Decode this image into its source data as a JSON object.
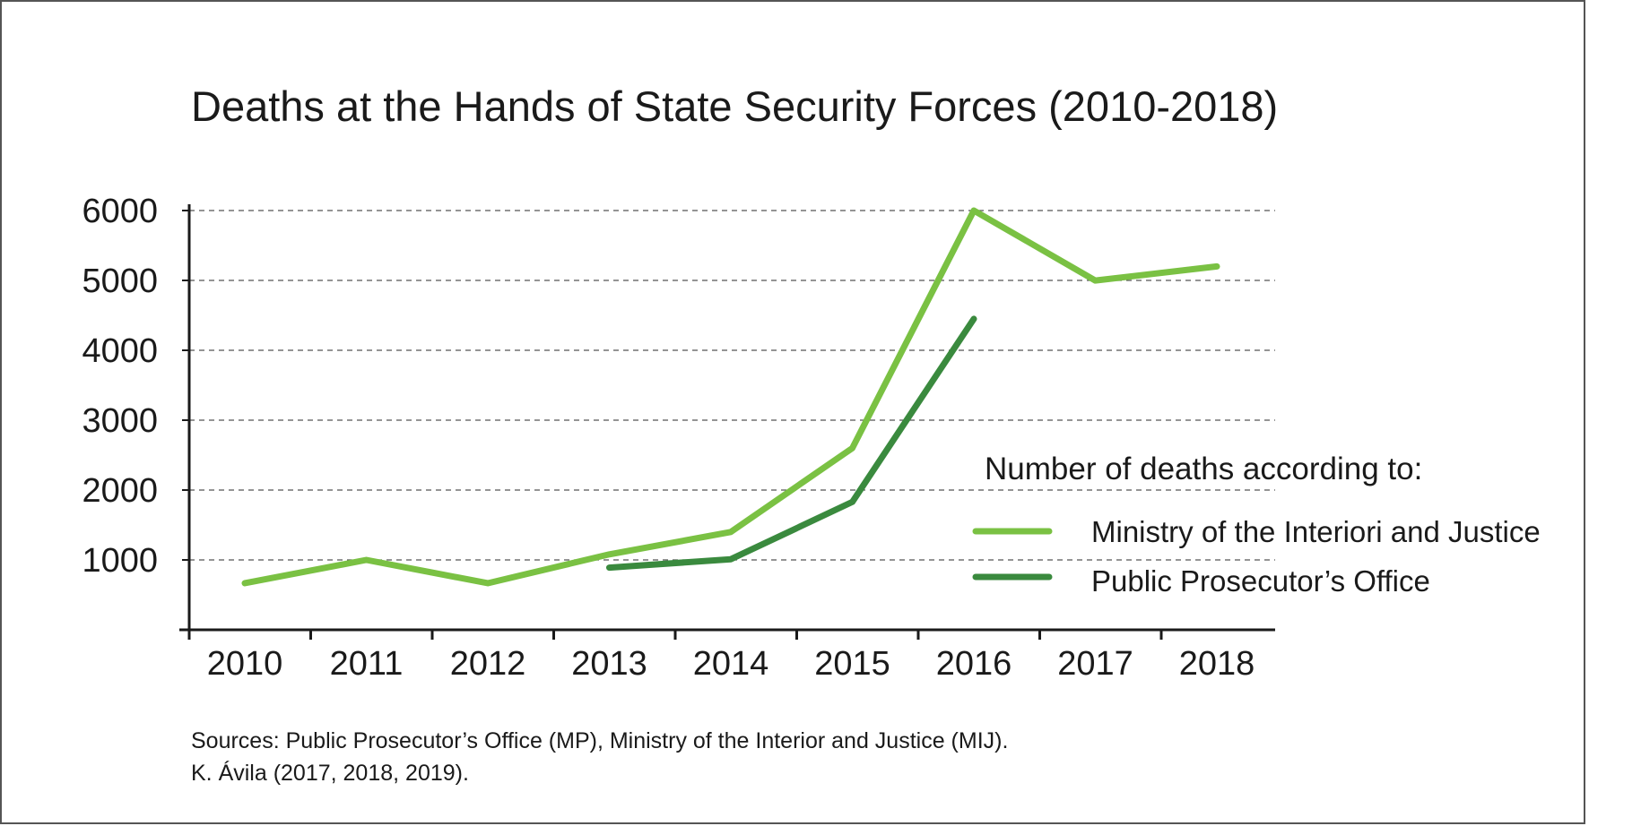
{
  "chart_data": {
    "type": "line",
    "title": "Deaths at the Hands of State Security Forces (2010-2018)",
    "xlabel": "",
    "ylabel": "",
    "categories": [
      "2010",
      "2011",
      "2012",
      "2013",
      "2014",
      "2015",
      "2016",
      "2017",
      "2018"
    ],
    "y_ticks": [
      1000,
      2000,
      3000,
      4000,
      5000,
      6000
    ],
    "y_tick_labels": [
      "1000",
      "2000",
      "3000",
      "4000",
      "5000",
      "6000"
    ],
    "ylim": [
      0,
      6000
    ],
    "grid": "horizontal dashed",
    "legend_title": "Number of deaths according to:",
    "legend_position": "right",
    "series": [
      {
        "name": "Ministry of the Interiori and Justice",
        "color": "#7ac143",
        "values": [
          667,
          1000,
          667,
          1080,
          1400,
          2600,
          6000,
          4998,
          5200
        ]
      },
      {
        "name": "Public Prosecutor’s Office",
        "color": "#3a8a3e",
        "values": [
          null,
          null,
          null,
          890,
          1010,
          1830,
          4450,
          null,
          null
        ]
      }
    ],
    "sources": [
      "Sources: Public Prosecutor’s Office (MP), Ministry of the Interior and Justice (MIJ).",
      "K. Ávila (2017, 2018, 2019)."
    ]
  }
}
